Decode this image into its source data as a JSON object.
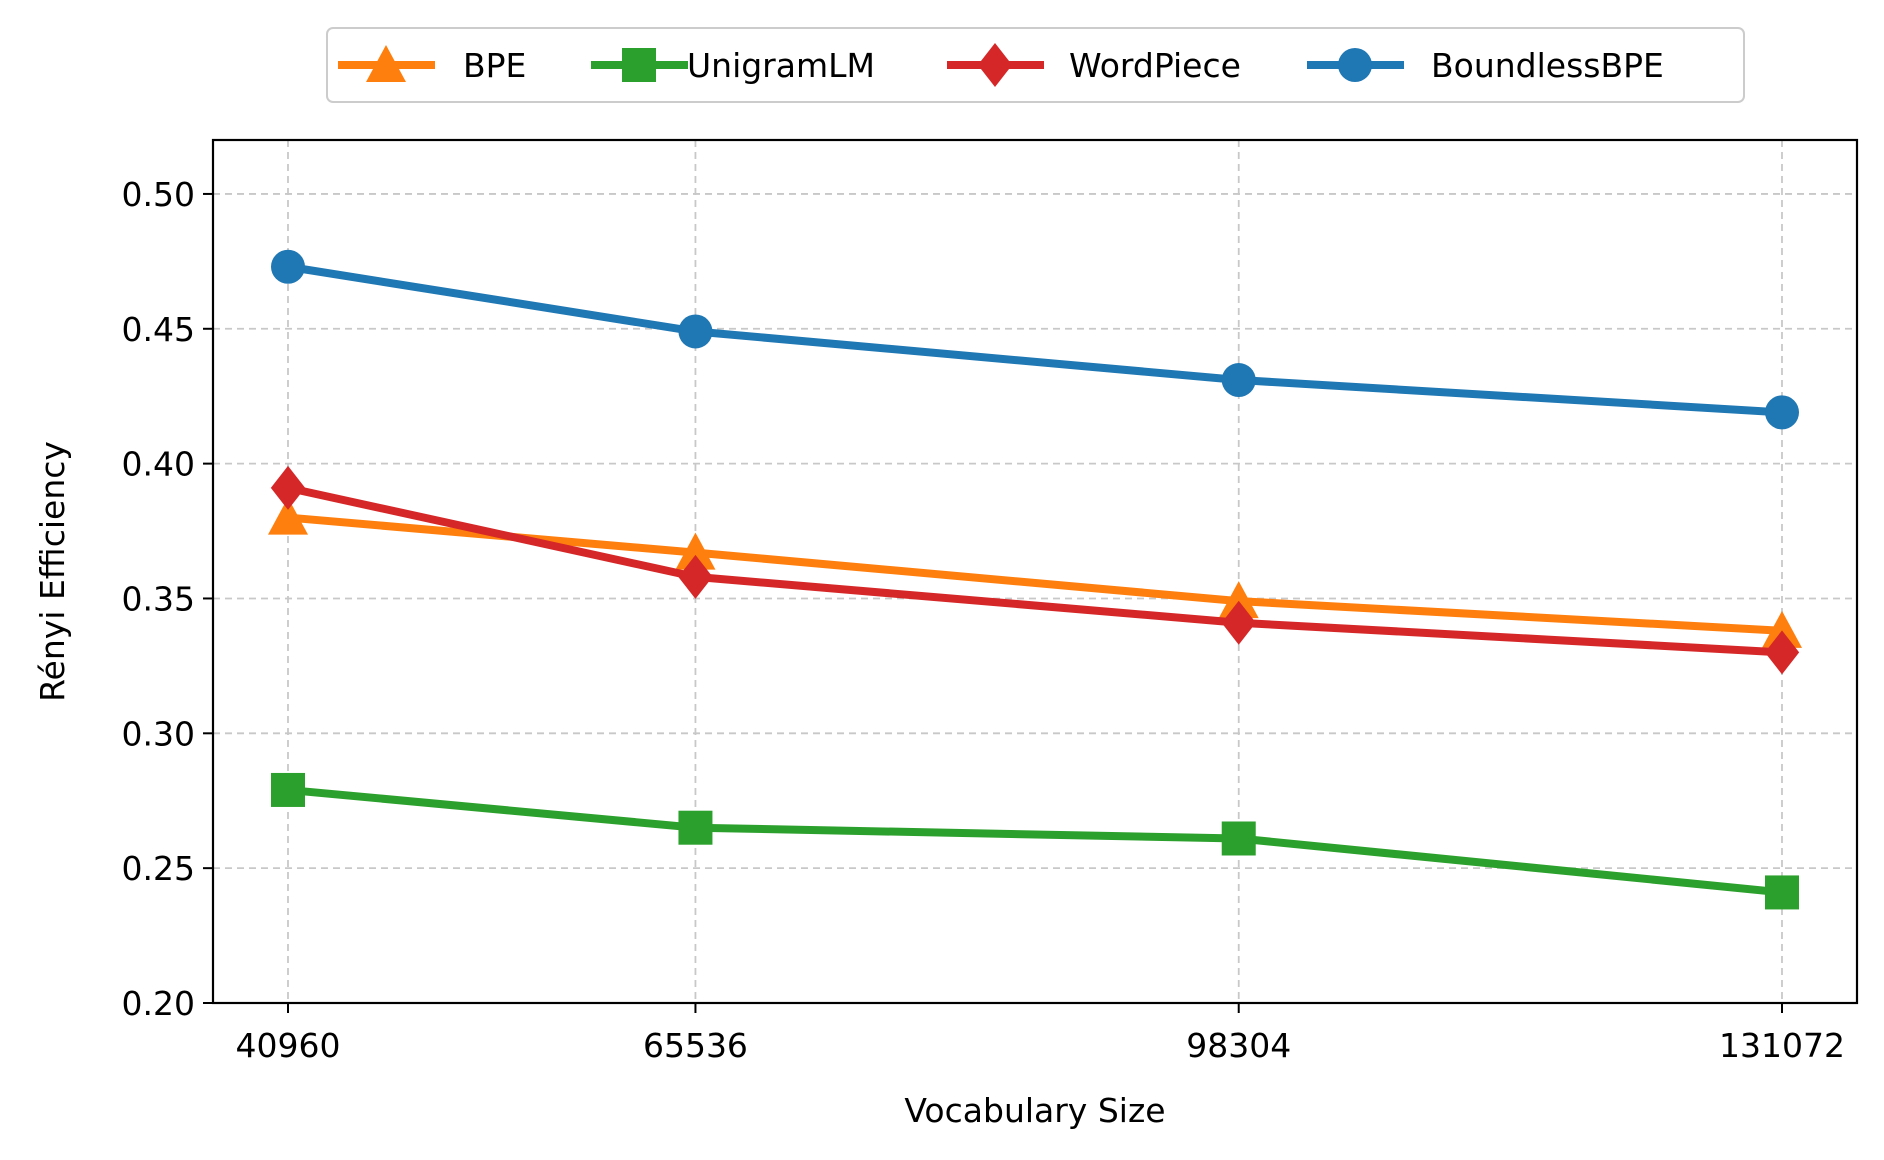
{
  "chart_data": {
    "type": "line",
    "x": [
      40960,
      65536,
      98304,
      131072
    ],
    "x_tick_labels": [
      "40960",
      "65536",
      "98304",
      "131072"
    ],
    "xlabel": "Vocabulary Size",
    "ylabel": "Rényi Efficiency",
    "ylim": [
      0.2,
      0.52
    ],
    "y_ticks": [
      0.2,
      0.25,
      0.3,
      0.35,
      0.4,
      0.45,
      0.5
    ],
    "y_tick_labels": [
      "0.20",
      "0.25",
      "0.30",
      "0.35",
      "0.40",
      "0.45",
      "0.50"
    ],
    "grid": true,
    "grid_style": "dashed",
    "legend_position": "top-center, above plot",
    "series": [
      {
        "name": "BPE",
        "color": "#ff7f0e",
        "marker": "triangle",
        "values": [
          0.38,
          0.367,
          0.349,
          0.338
        ]
      },
      {
        "name": "UnigramLM",
        "color": "#2ca02c",
        "marker": "square",
        "values": [
          0.279,
          0.265,
          0.261,
          0.241
        ]
      },
      {
        "name": "WordPiece",
        "color": "#d62728",
        "marker": "diamond",
        "values": [
          0.391,
          0.358,
          0.341,
          0.33
        ]
      },
      {
        "name": "BoundlessBPE",
        "color": "#1f77b4",
        "marker": "circle",
        "values": [
          0.473,
          0.449,
          0.431,
          0.419
        ]
      }
    ]
  }
}
